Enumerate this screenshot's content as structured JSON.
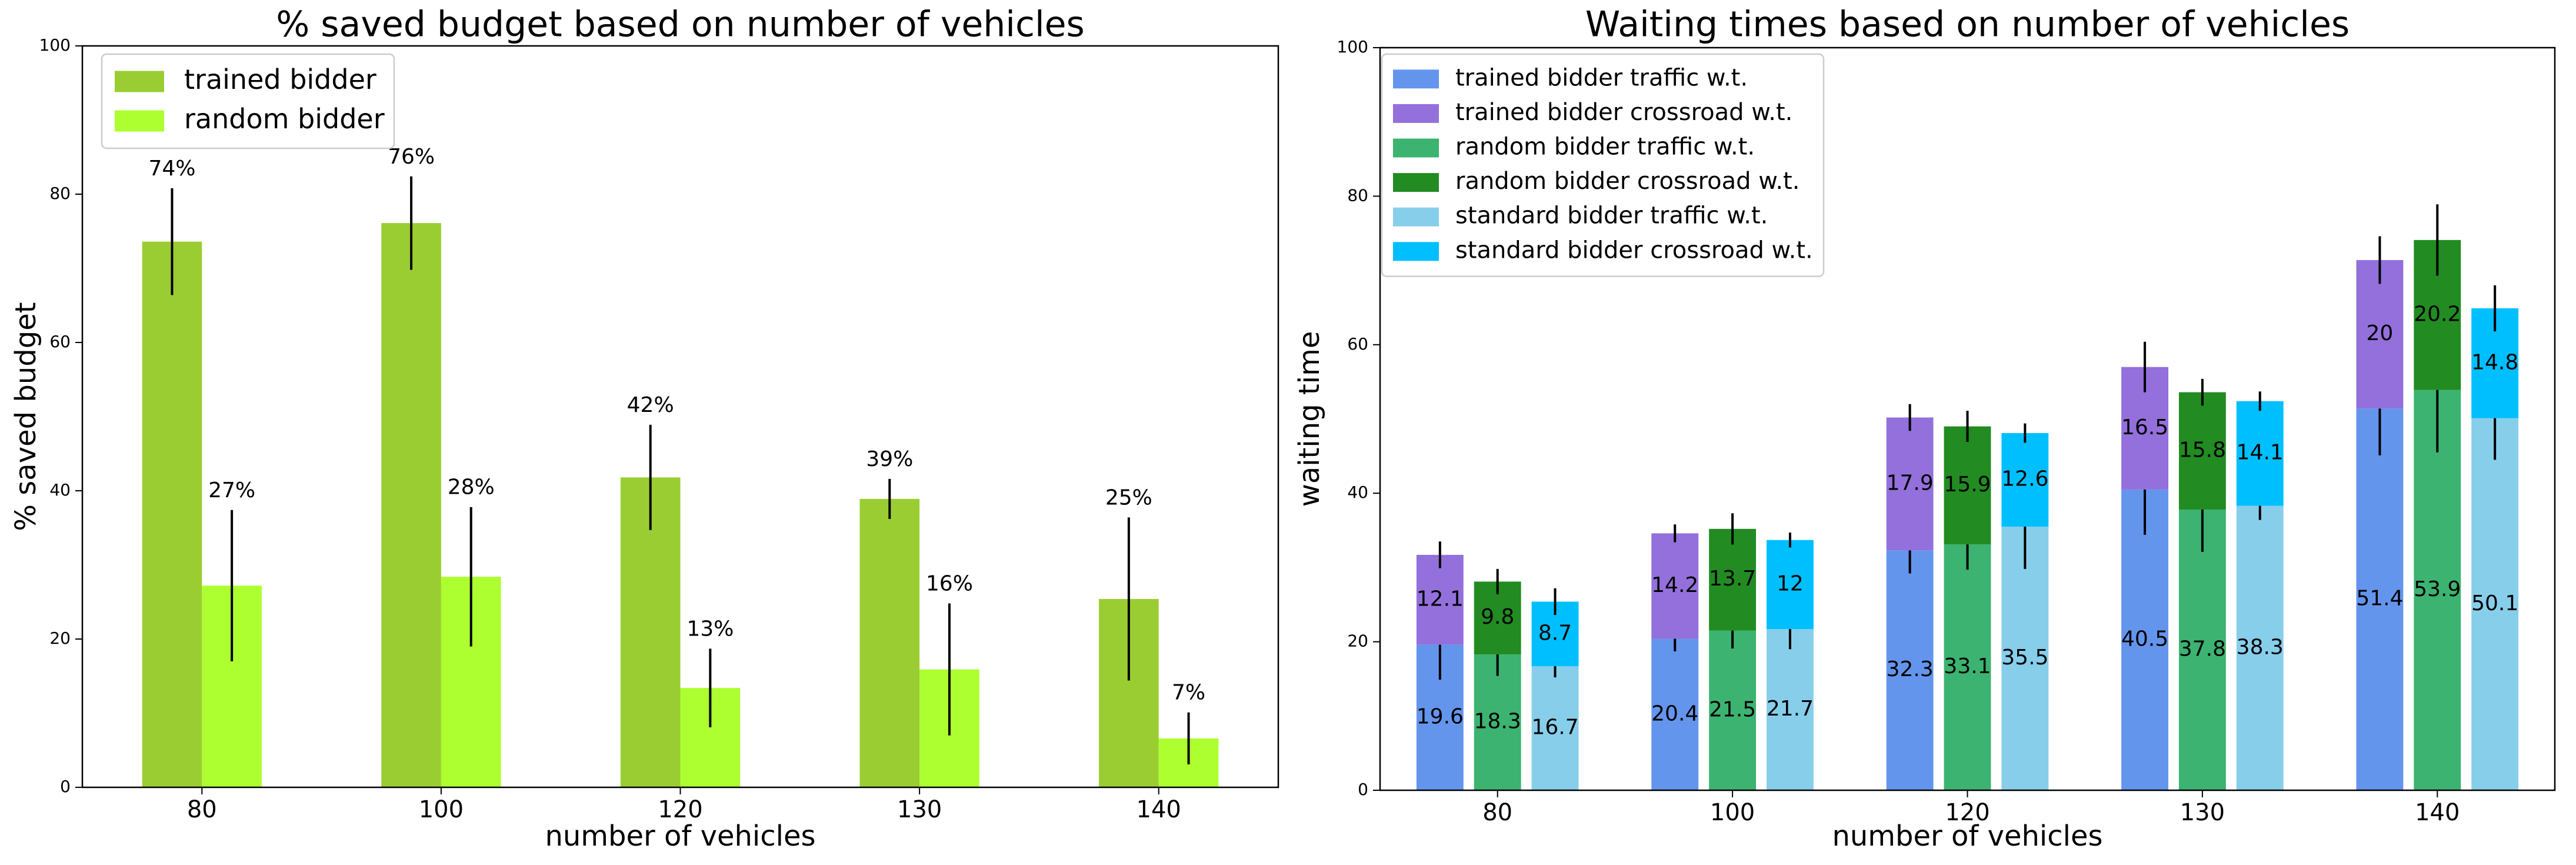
{
  "chart_data": [
    {
      "type": "bar",
      "title": "% saved budget based on number of vehicles",
      "xlabel": "number of vehicles",
      "ylabel": "% saved budget",
      "categories": [
        "80",
        "100",
        "120",
        "130",
        "140"
      ],
      "series": [
        {
          "name": "trained bidder",
          "color": "#9acd32",
          "values": [
            73.6,
            76.1,
            41.8,
            38.9,
            25.4
          ],
          "errors": [
            7.2,
            6.3,
            7.1,
            2.7,
            11
          ],
          "value_labels": [
            "74%",
            "76%",
            "42%",
            "39%",
            "25%"
          ]
        },
        {
          "name": "random bidder",
          "color": "#adff2f",
          "values": [
            27.2,
            28.4,
            13.4,
            15.9,
            6.6
          ],
          "errors": [
            10.2,
            9.4,
            5.3,
            8.9,
            3.5
          ],
          "value_labels": [
            "27%",
            "28%",
            "13%",
            "16%",
            "7%"
          ]
        }
      ],
      "ylim": [
        0,
        100
      ],
      "yticks": [
        0,
        20,
        40,
        60,
        80,
        100
      ],
      "legend": "upper left"
    },
    {
      "type": "stacked_bar",
      "title": "Waiting times based on number of vehicles",
      "xlabel": "number of vehicles",
      "ylabel": "waiting time",
      "categories": [
        "80",
        "100",
        "120",
        "130",
        "140"
      ],
      "series": [
        {
          "name": "trained bidder traffic w.t.",
          "color": "#6495ed",
          "stack": 0,
          "values": [
            19.6,
            20.4,
            32.3,
            40.5,
            51.4
          ],
          "errors": [
            4.7,
            1.7,
            3.1,
            6.1,
            6.3
          ]
        },
        {
          "name": "trained bidder crossroad w.t.",
          "color": "#9370db",
          "stack": 0,
          "values": [
            12.1,
            14.2,
            17.9,
            16.5,
            20
          ],
          "errors": [
            1.8,
            1.2,
            1.8,
            3.4,
            3.2
          ]
        },
        {
          "name": "random bidder traffic w.t.",
          "color": "#3cb371",
          "stack": 1,
          "values": [
            18.3,
            21.5,
            33.1,
            37.8,
            53.9
          ],
          "errors": [
            2.9,
            2.4,
            3.4,
            5.7,
            8.4
          ]
        },
        {
          "name": "random bidder crossroad w.t.",
          "color": "#228b22",
          "stack": 1,
          "values": [
            9.8,
            13.7,
            15.9,
            15.8,
            20.2
          ],
          "errors": [
            1.7,
            2.1,
            2.1,
            1.8,
            4.8
          ]
        },
        {
          "name": "standard bidder traffic w.t.",
          "color": "#87ceeb",
          "stack": 2,
          "values": [
            16.7,
            21.7,
            35.5,
            38.3,
            50.1
          ],
          "errors": [
            1.5,
            2.7,
            5.7,
            1.9,
            5.6
          ]
        },
        {
          "name": "standard bidder crossroad w.t.",
          "color": "#00bfff",
          "stack": 2,
          "values": [
            8.7,
            12,
            12.6,
            14.1,
            14.8
          ],
          "errors": [
            1.8,
            1,
            1.3,
            1.3,
            3.1
          ]
        }
      ],
      "ylim": [
        0,
        100
      ],
      "yticks": [
        0,
        20,
        40,
        60,
        80,
        100
      ],
      "legend": "upper left"
    }
  ]
}
